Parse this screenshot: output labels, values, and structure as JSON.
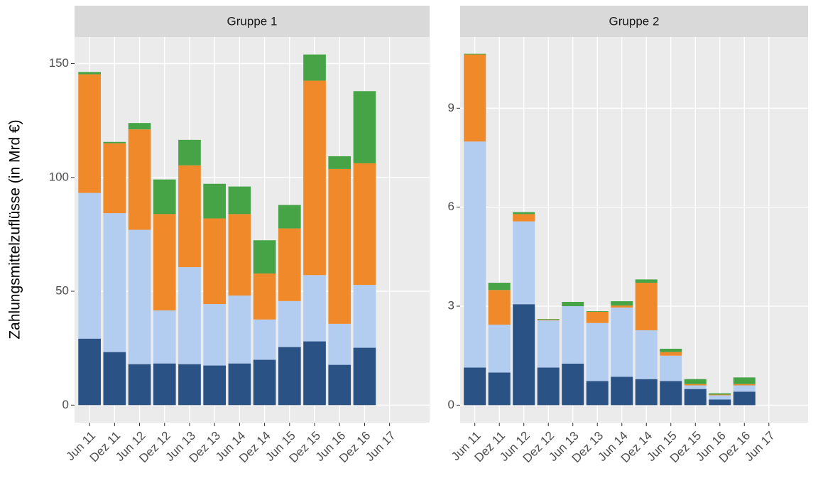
{
  "chart_data": [
    {
      "type": "bar",
      "stacked": true,
      "title": "Gruppe 1",
      "y_label": "Zahlungsmittelzuflüsse (in Mrd €)",
      "categories": [
        "Jun 11",
        "Dez 11",
        "Jun 12",
        "Dez 12",
        "Jun 13",
        "Dez 13",
        "Jun 14",
        "Dez 14",
        "Jun 15",
        "Dez 15",
        "Jun 16",
        "Dez 16",
        "Jun 17"
      ],
      "series": [
        {
          "color": "#2b5285",
          "values": [
            29.2,
            23.3,
            18,
            18.3,
            18,
            17.4,
            18.3,
            19.9,
            25.5,
            28,
            17.7,
            25.2,
            null
          ]
        },
        {
          "color": "#b3cdf0",
          "values": [
            64,
            61,
            59,
            23.3,
            42.6,
            27,
            29.8,
            17.7,
            20.2,
            29.1,
            18,
            27.6,
            null
          ]
        },
        {
          "color": "#f0892a",
          "values": [
            52.1,
            30.7,
            44.1,
            42.3,
            44.7,
            37.6,
            35.8,
            20.2,
            31.9,
            85.4,
            68,
            53.4,
            null
          ]
        },
        {
          "color": "#46a446",
          "values": [
            1,
            0.6,
            2.8,
            15.2,
            11.2,
            15.2,
            12.1,
            14.6,
            10.3,
            11.5,
            5.6,
            31.7,
            null
          ]
        }
      ],
      "ylim": [
        -7.7,
        161.7
      ],
      "yticks": [
        0,
        50,
        100,
        150
      ],
      "grid": true
    },
    {
      "type": "bar",
      "stacked": true,
      "title": "Gruppe 2",
      "categories": [
        "Jun 11",
        "Dez 11",
        "Jun 12",
        "Dez 12",
        "Jun 13",
        "Dez 13",
        "Jun 14",
        "Dez 14",
        "Jun 15",
        "Dez 15",
        "Jun 16",
        "Dez 16",
        "Jun 17"
      ],
      "series": [
        {
          "color": "#2b5285",
          "values": [
            1.14,
            0.99,
            3.06,
            1.14,
            1.26,
            0.73,
            0.86,
            0.79,
            0.73,
            0.49,
            0.17,
            0.41,
            null
          ]
        },
        {
          "color": "#b3cdf0",
          "values": [
            6.85,
            1.45,
            2.51,
            1.43,
            1.74,
            1.76,
            2.1,
            1.48,
            0.77,
            0.11,
            0.13,
            0.19,
            null
          ]
        },
        {
          "color": "#f0892a",
          "values": [
            2.64,
            1.05,
            0.22,
            0.02,
            0,
            0.34,
            0.06,
            1.44,
            0.11,
            0.04,
            0.02,
            0.04,
            null
          ]
        },
        {
          "color": "#46a446",
          "values": [
            0.02,
            0.22,
            0.06,
            0.02,
            0.13,
            0.02,
            0.13,
            0.1,
            0.1,
            0.15,
            0.04,
            0.2,
            null
          ]
        }
      ],
      "ylim": [
        -0.53,
        11.16
      ],
      "yticks": [
        0,
        3,
        6,
        9
      ],
      "grid": true
    }
  ]
}
